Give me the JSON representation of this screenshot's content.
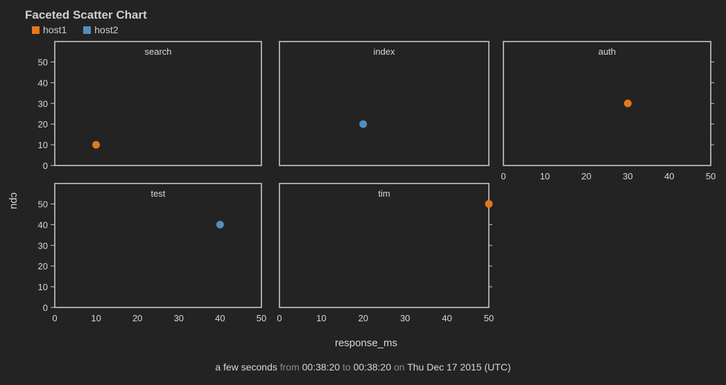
{
  "title": "Faceted Scatter Chart",
  "legend": [
    {
      "name": "host1",
      "color": "#e5781c"
    },
    {
      "name": "host2",
      "color": "#4f8fbf"
    }
  ],
  "footer": {
    "duration": "a few seconds",
    "from_label": "from",
    "from_time": "00:38:20",
    "to_label": "to",
    "to_time": "00:38:20",
    "on_label": "on",
    "date": "Thu Dec 17 2015 (UTC)"
  },
  "chart_data": {
    "type": "scatter",
    "title": "Faceted Scatter Chart",
    "xlabel": "response_ms",
    "ylabel": "cpu",
    "xlim": [
      0,
      50
    ],
    "ylim": [
      0,
      50
    ],
    "xticks": [
      0,
      10,
      20,
      30,
      40,
      50
    ],
    "yticks": [
      0,
      10,
      20,
      30,
      40,
      50
    ],
    "grid": false,
    "legend_position": "top-left",
    "facets": [
      {
        "name": "search",
        "points": [
          {
            "x": 10,
            "y": 10,
            "series": "host1"
          }
        ]
      },
      {
        "name": "index",
        "points": [
          {
            "x": 20,
            "y": 20,
            "series": "host2"
          }
        ]
      },
      {
        "name": "auth",
        "points": [
          {
            "x": 30,
            "y": 30,
            "series": "host1"
          }
        ]
      },
      {
        "name": "test",
        "points": [
          {
            "x": 40,
            "y": 40,
            "series": "host2"
          }
        ]
      },
      {
        "name": "tim",
        "points": [
          {
            "x": 50,
            "y": 50,
            "series": "host1"
          }
        ]
      }
    ]
  }
}
